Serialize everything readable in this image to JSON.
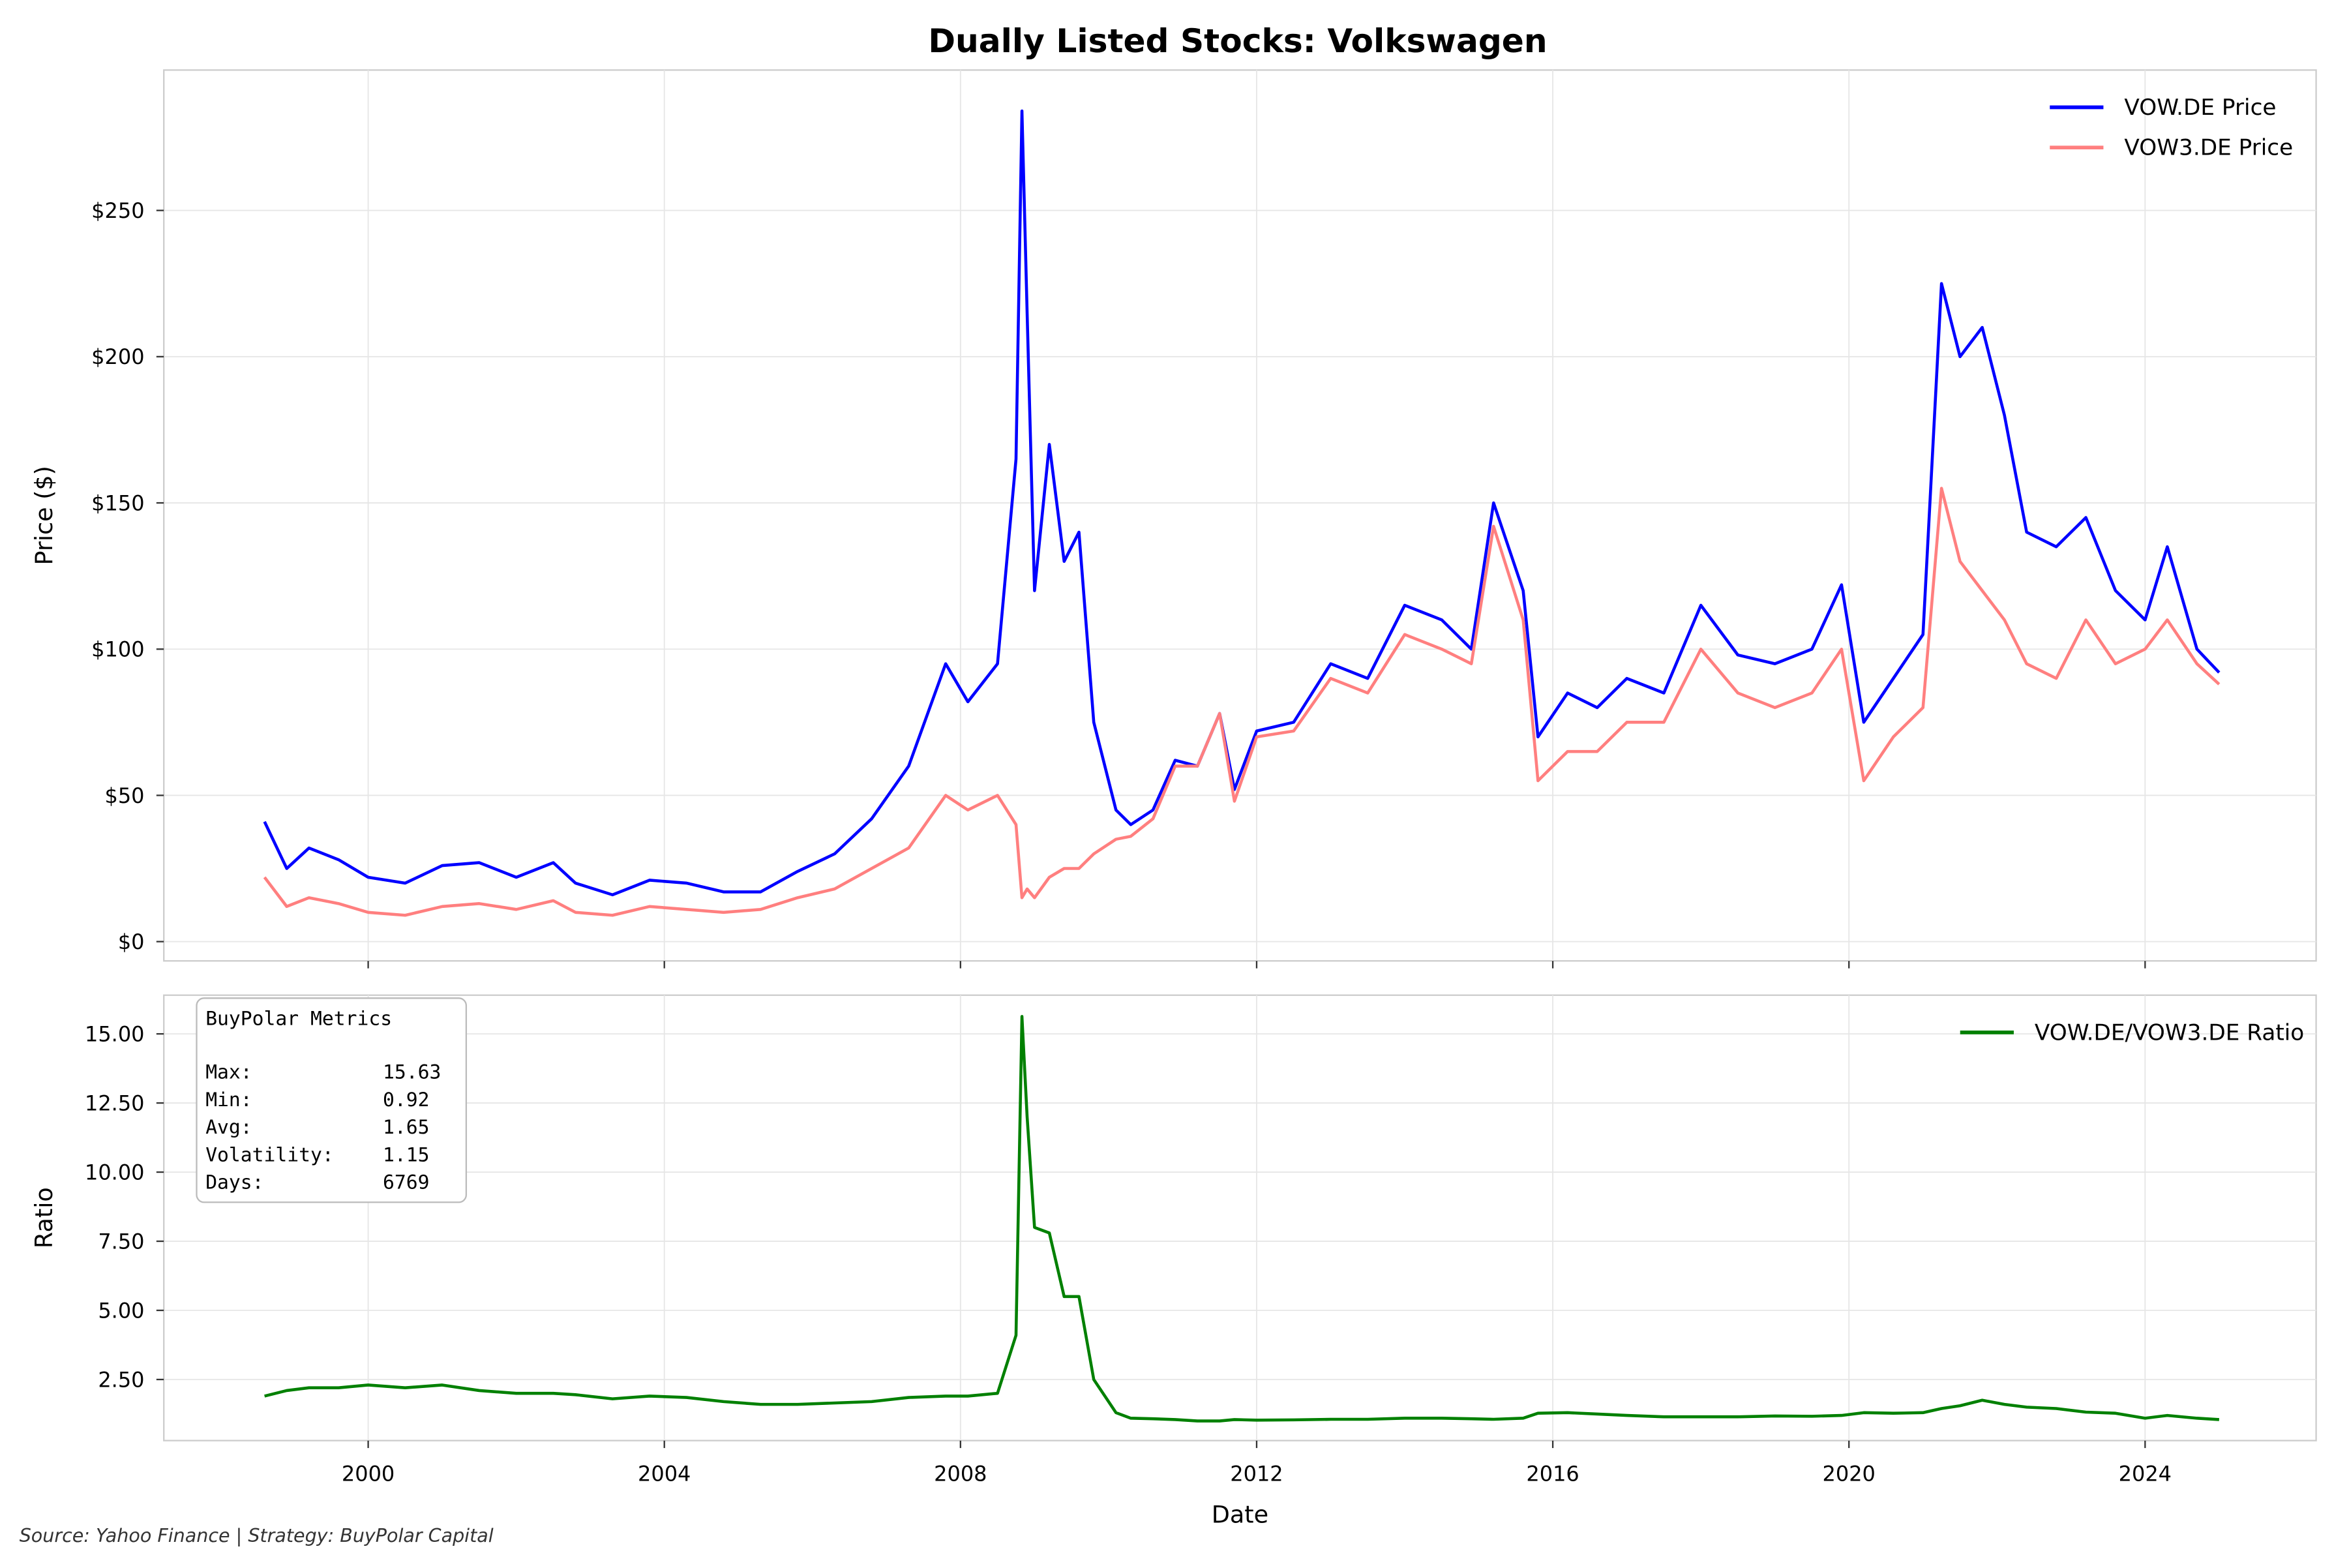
{
  "chart_data": [
    {
      "type": "line",
      "title": "Dually Listed Stocks: Volkswagen",
      "ylabel": "Price ($)",
      "x": [
        1998.6,
        1998.9,
        1999.2,
        1999.6,
        2000.0,
        2000.5,
        2001.0,
        2001.5,
        2002.0,
        2002.5,
        2002.8,
        2003.3,
        2003.8,
        2004.3,
        2004.8,
        2005.3,
        2005.8,
        2006.3,
        2006.8,
        2007.3,
        2007.8,
        2008.1,
        2008.5,
        2008.75,
        2008.83,
        2008.9,
        2009.0,
        2009.2,
        2009.4,
        2009.6,
        2009.8,
        2010.1,
        2010.3,
        2010.6,
        2010.9,
        2011.2,
        2011.5,
        2011.7,
        2012.0,
        2012.5,
        2013.0,
        2013.5,
        2014.0,
        2014.5,
        2014.9,
        2015.2,
        2015.6,
        2015.8,
        2016.2,
        2016.6,
        2017.0,
        2017.5,
        2018.0,
        2018.5,
        2019.0,
        2019.5,
        2019.9,
        2020.2,
        2020.6,
        2021.0,
        2021.25,
        2021.5,
        2021.8,
        2022.1,
        2022.4,
        2022.8,
        2023.2,
        2023.6,
        2024.0,
        2024.3,
        2024.7,
        2025.0
      ],
      "series": [
        {
          "name": "VOW.DE Price",
          "color": "#0000ff",
          "values": [
            41,
            25,
            32,
            28,
            22,
            20,
            26,
            27,
            22,
            27,
            20,
            16,
            21,
            20,
            17,
            17,
            24,
            30,
            42,
            60,
            95,
            82,
            95,
            165,
            284,
            215,
            120,
            170,
            130,
            140,
            75,
            45,
            40,
            45,
            62,
            60,
            78,
            52,
            72,
            75,
            95,
            90,
            115,
            110,
            100,
            150,
            120,
            70,
            85,
            80,
            90,
            85,
            115,
            98,
            95,
            100,
            122,
            75,
            90,
            105,
            225,
            200,
            210,
            180,
            140,
            135,
            145,
            120,
            110,
            135,
            100,
            92
          ]
        },
        {
          "name": "VOW3.DE Price",
          "color": "#ff7f7f",
          "values": [
            22,
            12,
            15,
            13,
            10,
            9,
            12,
            13,
            11,
            14,
            10,
            9,
            12,
            11,
            10,
            11,
            15,
            18,
            25,
            32,
            50,
            45,
            50,
            40,
            15,
            18,
            15,
            22,
            25,
            25,
            30,
            35,
            36,
            42,
            60,
            60,
            78,
            48,
            70,
            72,
            90,
            85,
            105,
            100,
            95,
            142,
            110,
            55,
            65,
            65,
            75,
            75,
            100,
            85,
            80,
            85,
            100,
            55,
            70,
            80,
            155,
            130,
            120,
            110,
            95,
            90,
            110,
            95,
            100,
            110,
            95,
            88
          ]
        }
      ],
      "xlim": [
        1997.24,
        2026.31
      ],
      "xticks": [
        2000,
        2004,
        2008,
        2012,
        2016,
        2020,
        2024
      ],
      "ylim": [
        -6.6,
        298
      ],
      "yticks": [
        {
          "value": 0,
          "label": "$0"
        },
        {
          "value": 50,
          "label": "$50"
        },
        {
          "value": 100,
          "label": "$100"
        },
        {
          "value": 150,
          "label": "$150"
        },
        {
          "value": 200,
          "label": "$200"
        },
        {
          "value": 250,
          "label": "$250"
        }
      ],
      "grid": true,
      "legend": "upper right"
    },
    {
      "type": "line",
      "ylabel": "Ratio",
      "xlabel": "Date",
      "x": [
        1998.6,
        1998.9,
        1999.2,
        1999.6,
        2000.0,
        2000.5,
        2001.0,
        2001.5,
        2002.0,
        2002.5,
        2002.8,
        2003.3,
        2003.8,
        2004.3,
        2004.8,
        2005.3,
        2005.8,
        2006.3,
        2006.8,
        2007.3,
        2007.8,
        2008.1,
        2008.5,
        2008.75,
        2008.83,
        2008.9,
        2009.0,
        2009.2,
        2009.4,
        2009.6,
        2009.8,
        2010.1,
        2010.3,
        2010.6,
        2010.9,
        2011.2,
        2011.5,
        2011.7,
        2012.0,
        2012.5,
        2013.0,
        2013.5,
        2014.0,
        2014.5,
        2014.9,
        2015.2,
        2015.6,
        2015.8,
        2016.2,
        2016.6,
        2017.0,
        2017.5,
        2018.0,
        2018.5,
        2019.0,
        2019.5,
        2019.9,
        2020.2,
        2020.6,
        2021.0,
        2021.25,
        2021.5,
        2021.8,
        2022.1,
        2022.4,
        2022.8,
        2023.2,
        2023.6,
        2024.0,
        2024.3,
        2024.7,
        2025.0
      ],
      "series": [
        {
          "name": "VOW.DE/VOW3.DE Ratio",
          "color": "#008000",
          "values": [
            1.9,
            2.1,
            2.2,
            2.2,
            2.3,
            2.2,
            2.3,
            2.1,
            2.0,
            2.0,
            1.95,
            1.8,
            1.9,
            1.85,
            1.7,
            1.6,
            1.6,
            1.65,
            1.7,
            1.85,
            1.9,
            1.9,
            2.0,
            4.1,
            15.63,
            12,
            8,
            7.8,
            5.5,
            5.5,
            2.5,
            1.3,
            1.1,
            1.08,
            1.05,
            1.0,
            1.0,
            1.05,
            1.03,
            1.04,
            1.06,
            1.06,
            1.1,
            1.1,
            1.08,
            1.06,
            1.1,
            1.28,
            1.3,
            1.25,
            1.2,
            1.15,
            1.15,
            1.15,
            1.18,
            1.17,
            1.2,
            1.3,
            1.28,
            1.3,
            1.45,
            1.55,
            1.75,
            1.6,
            1.5,
            1.45,
            1.32,
            1.28,
            1.1,
            1.2,
            1.1,
            1.05
          ]
        }
      ],
      "xlim": [
        1997.24,
        2026.31
      ],
      "xticks": [
        2000,
        2004,
        2008,
        2012,
        2016,
        2020,
        2024
      ],
      "ylim": [
        0.29,
        16.4
      ],
      "yticks": [
        {
          "value": 2.5,
          "label": "2.50"
        },
        {
          "value": 5,
          "label": "5.00"
        },
        {
          "value": 7.5,
          "label": "7.50"
        },
        {
          "value": 10,
          "label": "10.00"
        },
        {
          "value": 12.5,
          "label": "12.50"
        },
        {
          "value": 15,
          "label": "15.00"
        }
      ],
      "grid": true,
      "legend": "upper right",
      "metrics": {
        "title": "BuyPolar Metrics",
        "rows": [
          {
            "label": "Max:",
            "value": "15.63"
          },
          {
            "label": "Min:",
            "value": "0.92"
          },
          {
            "label": "Avg:",
            "value": "1.65"
          },
          {
            "label": "Volatility:",
            "value": "1.15"
          },
          {
            "label": "Days:",
            "value": "6769"
          }
        ]
      }
    }
  ],
  "source": "Source: Yahoo Finance | Strategy: BuyPolar Capital"
}
